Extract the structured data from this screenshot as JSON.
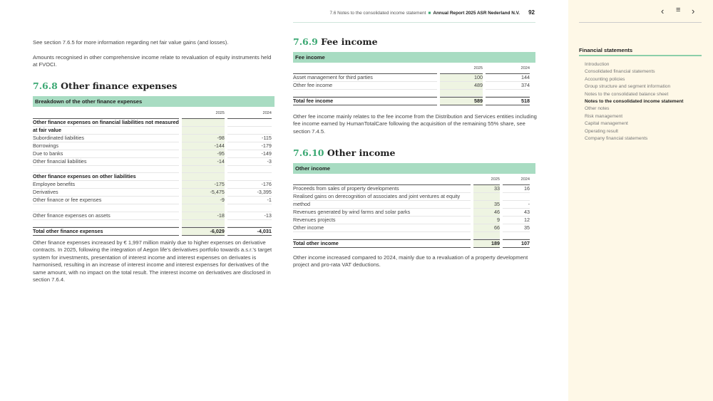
{
  "header": {
    "section": "7.6 Notes to the consolidated income statement",
    "report": "Annual Report 2025 ASR Nederland N.V.",
    "page": "92"
  },
  "left": {
    "intro1": "See section 7.6.5 for more information regarding net fair value gains (and losses).",
    "intro2": "Amounts recognised in other comprehensive income relate to revaluation of equity instruments held at FVOCI.",
    "heading_num": "7.6.8",
    "heading_text": "Other finance expenses",
    "table_title": "Breakdown of the other finance expenses",
    "years": [
      "2025",
      "2024"
    ],
    "rows": [
      {
        "label": "Other finance expenses on financial liabilities not measured",
        "type": "b",
        "v": [
          "",
          ""
        ]
      },
      {
        "label": "at fair value",
        "type": "b",
        "v": [
          "",
          ""
        ]
      },
      {
        "label": "Subordinated liabilities",
        "v": [
          "-98",
          "-115"
        ]
      },
      {
        "label": "Borrowings",
        "v": [
          "-144",
          "-179"
        ]
      },
      {
        "label": "Due to banks",
        "v": [
          "-95",
          "-149"
        ]
      },
      {
        "label": "Other financial liabilities",
        "v": [
          "-14",
          "-3"
        ]
      },
      {
        "label": "",
        "type": "e",
        "v": [
          "",
          ""
        ]
      },
      {
        "label": "Other finance expenses on other liabilities",
        "type": "b",
        "v": [
          "",
          ""
        ]
      },
      {
        "label": "Employee benefits",
        "v": [
          "-175",
          "-176"
        ]
      },
      {
        "label": "Derivatives",
        "v": [
          "-5,475",
          "-3,395"
        ]
      },
      {
        "label": "Other finance or fee expenses",
        "v": [
          "-9",
          "-1"
        ]
      },
      {
        "label": "",
        "type": "e",
        "v": [
          "",
          ""
        ]
      },
      {
        "label": "Other finance expenses on assets",
        "v": [
          "-18",
          "-13"
        ]
      },
      {
        "label": "",
        "type": "e",
        "v": [
          "",
          ""
        ]
      },
      {
        "label": "Total other finance expenses",
        "type": "t",
        "v": [
          "-6,029",
          "-4,031"
        ]
      }
    ],
    "note": "Other finance expenses increased by € 1,997 million mainly due to higher expenses on derivative contracts. In 2025, following the integration of Aegon life's derivatives portfolio towards a.s.r.'s target system for investments, presentation of interest income and interest expenses on derivates is harmonised, resulting in an increase of interest income and interest expenses for derivatives of the same amount, with no impact on the total result. The interest income on derivatives are disclosed in section 7.6.4."
  },
  "fee": {
    "heading_num": "7.6.9",
    "heading_text": "Fee income",
    "table_title": "Fee income",
    "years": [
      "2025",
      "2024"
    ],
    "rows": [
      {
        "label": "Asset management for third parties",
        "v": [
          "100",
          "144"
        ]
      },
      {
        "label": "Other fee income",
        "v": [
          "489",
          "374"
        ]
      },
      {
        "label": "",
        "type": "e",
        "v": [
          "",
          ""
        ]
      },
      {
        "label": "Total fee income",
        "type": "t",
        "v": [
          "589",
          "518"
        ]
      }
    ],
    "note": "Other fee income mainly relates to the fee income from the Distribution and Services entities including fee income earned by HumanTotalCare following the acquisition of the remaining 55% share, see section 7.4.5."
  },
  "other": {
    "heading_num": "7.6.10",
    "heading_text": "Other income",
    "table_title": "Other income",
    "years": [
      "2025",
      "2024"
    ],
    "rows": [
      {
        "label": "Proceeds from sales of property developments",
        "v": [
          "33",
          "16"
        ]
      },
      {
        "label": "Realised gains on derecognition of associates and joint ventures at equity",
        "v": [
          "",
          ""
        ]
      },
      {
        "label": "method",
        "v": [
          "35",
          "-"
        ]
      },
      {
        "label": "Revenues generated by wind farms and solar parks",
        "v": [
          "46",
          "43"
        ]
      },
      {
        "label": "Revenues projects",
        "v": [
          "9",
          "12"
        ]
      },
      {
        "label": "Other income",
        "v": [
          "66",
          "35"
        ]
      },
      {
        "label": "",
        "type": "e",
        "v": [
          "",
          ""
        ]
      },
      {
        "label": "Total other income",
        "type": "t",
        "v": [
          "189",
          "107"
        ]
      }
    ],
    "note": "Other income increased compared to 2024, mainly due to a revaluation of a property development project and pro-rata VAT deductions."
  },
  "sidebar": {
    "title": "Financial statements",
    "items": [
      "Introduction",
      "Consolidated financial statements",
      "Accounting policies",
      "Group structure and segment information",
      "Notes to the consolidated balance sheet",
      "Notes to the consolidated income statement",
      "Other notes",
      "Risk management",
      "Capital management",
      "Operating result",
      "Company financial statements"
    ],
    "active": 5,
    "prev_icon": "chevron-left-icon",
    "menu_icon": "hamburger-menu-icon",
    "next_icon": "chevron-right-icon"
  },
  "colors": {
    "accent": "#3aa872",
    "table_header": "#a8dcc2",
    "sidebar_bg": "#fef8e7"
  }
}
